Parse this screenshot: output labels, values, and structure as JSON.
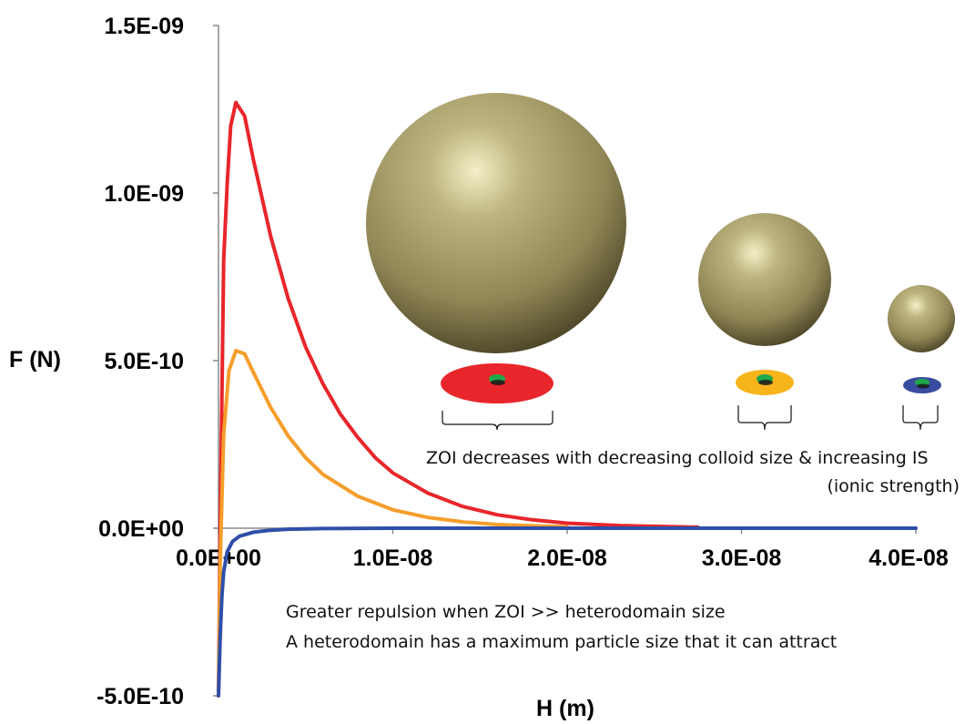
{
  "chart_data": {
    "type": "line",
    "title": "",
    "xlabel": "H (m)",
    "ylabel": "F (N)",
    "xlim": [
      0,
      4e-08
    ],
    "ylim": [
      -5e-10,
      1.5e-09
    ],
    "x_ticks": [
      0,
      1e-08,
      2e-08,
      3e-08,
      4e-08
    ],
    "x_tick_labels": [
      "0.0E+00",
      "1.0E-08",
      "2.0E-08",
      "3.0E-08",
      "4.0E-08"
    ],
    "y_ticks": [
      -5e-10,
      0,
      5e-10,
      1e-09,
      1.5e-09
    ],
    "y_tick_labels": [
      "-5.0E-10",
      "0.0E+00",
      "5.0E-10",
      "1.0E-09",
      "1.5E-09"
    ],
    "grid": false,
    "legend": "none",
    "series": [
      {
        "color": "#e8262b",
        "x": [
          0,
          1e-10,
          3e-10,
          5e-10,
          7e-10,
          1e-09,
          1.5e-09,
          2e-09,
          3e-09,
          4e-09,
          5e-09,
          6e-09,
          7e-09,
          8e-09,
          9e-09,
          1e-08,
          1.2e-08,
          1.4e-08,
          1.6e-08,
          1.8e-08,
          2e-08,
          2.3e-08,
          2.75e-08
        ],
        "y": [
          -5e-10,
          0,
          8e-10,
          1.03e-09,
          1.2e-09,
          1.27e-09,
          1.23e-09,
          1.1e-09,
          8.7e-10,
          6.85e-10,
          5.4e-10,
          4.3e-10,
          3.4e-10,
          2.7e-10,
          2.1e-10,
          1.65e-10,
          1.05e-10,
          6.5e-11,
          4e-11,
          2.5e-11,
          1.5e-11,
          8e-12,
          3e-12
        ]
      },
      {
        "color": "#f59e2b",
        "x": [
          0,
          1e-10,
          3e-10,
          6e-10,
          1e-09,
          1.5e-09,
          2e-09,
          3e-09,
          4e-09,
          5e-09,
          6e-09,
          8e-09,
          1e-08,
          1.2e-08,
          1.4e-08,
          1.6e-08,
          1.8e-08,
          2e-08
        ],
        "y": [
          -5e-10,
          -1e-10,
          2.8e-10,
          4.7e-10,
          5.3e-10,
          5.2e-10,
          4.65e-10,
          3.6e-10,
          2.75e-10,
          2.1e-10,
          1.6e-10,
          9.5e-11,
          5.5e-11,
          3.2e-11,
          1.9e-11,
          1.1e-11,
          7e-12,
          4e-12
        ]
      },
      {
        "color": "#2e4fa8",
        "x": [
          0,
          1e-10,
          2e-10,
          3e-10,
          5e-10,
          8e-10,
          1.2e-09,
          2e-09,
          3e-09,
          4e-09,
          6e-09,
          1e-08,
          2e-08,
          4e-08
        ],
        "y": [
          -5e-10,
          -3.2e-10,
          -2e-10,
          -1.3e-10,
          -7e-11,
          -4e-11,
          -2.4e-11,
          -1.2e-11,
          -6e-12,
          -3e-12,
          -1e-12,
          0,
          0,
          0
        ]
      }
    ],
    "annotations": [
      "ZOI decreases with decreasing colloid size & increasing IS",
      "(ionic strength)",
      "Greater repulsion when ZOI >> heterodomain size",
      "A heterodomain has a maximum particle size  that it can attract"
    ]
  },
  "illustration": {
    "sphere_color": "#8f8555",
    "zoi_colors": [
      "#e8262b",
      "#f7b41b",
      "#3a4ca0"
    ],
    "heterodomain_color": "#1fa84a"
  }
}
